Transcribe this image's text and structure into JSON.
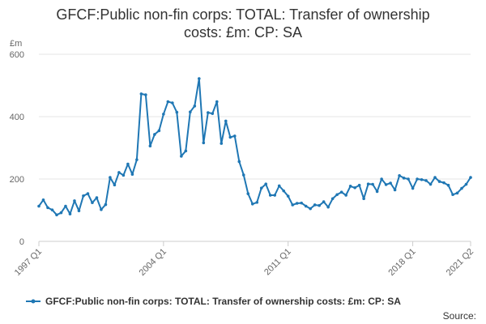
{
  "chart_data": {
    "type": "line",
    "title_line1": "GFCF:Public non-fin corps: TOTAL: Transfer of ownership",
    "title_line2": "costs: £m: CP: SA",
    "ylabel": "£m",
    "ylim": [
      0,
      600
    ],
    "yticks": [
      0,
      200,
      400,
      600
    ],
    "xticks": [
      "1997 Q1",
      "2004 Q1",
      "2011 Q1",
      "2018 Q1",
      "2021 Q2"
    ],
    "grid": true,
    "legend_position": "bottom",
    "source_label": "Source:",
    "series": [
      {
        "name": "GFCF:Public non-fin corps: TOTAL: Transfer of ownership costs: £m: CP: SA",
        "color": "#1f77b4",
        "x": [
          "1997 Q1",
          "1997 Q2",
          "1997 Q3",
          "1997 Q4",
          "1998 Q1",
          "1998 Q2",
          "1998 Q3",
          "1998 Q4",
          "1999 Q1",
          "1999 Q2",
          "1999 Q3",
          "1999 Q4",
          "2000 Q1",
          "2000 Q2",
          "2000 Q3",
          "2000 Q4",
          "2001 Q1",
          "2001 Q2",
          "2001 Q3",
          "2001 Q4",
          "2002 Q1",
          "2002 Q2",
          "2002 Q3",
          "2002 Q4",
          "2003 Q1",
          "2003 Q2",
          "2003 Q3",
          "2003 Q4",
          "2004 Q1",
          "2004 Q2",
          "2004 Q3",
          "2004 Q4",
          "2005 Q1",
          "2005 Q2",
          "2005 Q3",
          "2005 Q4",
          "2006 Q1",
          "2006 Q2",
          "2006 Q3",
          "2006 Q4",
          "2007 Q1",
          "2007 Q2",
          "2007 Q3",
          "2007 Q4",
          "2008 Q1",
          "2008 Q2",
          "2008 Q3",
          "2008 Q4",
          "2009 Q1",
          "2009 Q2",
          "2009 Q3",
          "2009 Q4",
          "2010 Q1",
          "2010 Q2",
          "2010 Q3",
          "2010 Q4",
          "2011 Q1",
          "2011 Q2",
          "2011 Q3",
          "2011 Q4",
          "2012 Q1",
          "2012 Q2",
          "2012 Q3",
          "2012 Q4",
          "2013 Q1",
          "2013 Q2",
          "2013 Q3",
          "2013 Q4",
          "2014 Q1",
          "2014 Q2",
          "2014 Q3",
          "2014 Q4",
          "2015 Q1",
          "2015 Q2",
          "2015 Q3",
          "2015 Q4",
          "2016 Q1",
          "2016 Q2",
          "2016 Q3",
          "2016 Q4",
          "2017 Q1",
          "2017 Q2",
          "2017 Q3",
          "2017 Q4",
          "2018 Q1",
          "2018 Q2",
          "2018 Q3",
          "2018 Q4",
          "2019 Q1",
          "2019 Q2",
          "2019 Q3",
          "2019 Q4",
          "2020 Q1",
          "2020 Q2",
          "2020 Q3",
          "2020 Q4",
          "2021 Q1",
          "2021 Q2"
        ],
        "values": [
          113,
          133,
          108,
          101,
          85,
          92,
          113,
          88,
          130,
          98,
          146,
          153,
          124,
          140,
          102,
          118,
          205,
          181,
          221,
          212,
          248,
          215,
          262,
          473,
          470,
          306,
          343,
          355,
          408,
          448,
          444,
          414,
          273,
          290,
          415,
          434,
          522,
          316,
          413,
          410,
          448,
          314,
          386,
          334,
          338,
          256,
          213,
          153,
          120,
          125,
          171,
          184,
          148,
          148,
          178,
          162,
          145,
          117,
          122,
          123,
          113,
          105,
          117,
          115,
          127,
          110,
          137,
          150,
          158,
          148,
          177,
          172,
          180,
          137,
          184,
          183,
          160,
          200,
          182,
          187,
          165,
          211,
          203,
          200,
          170,
          200,
          198,
          195,
          183,
          205,
          192,
          188,
          180,
          150,
          155,
          170,
          183,
          205
        ]
      }
    ]
  }
}
